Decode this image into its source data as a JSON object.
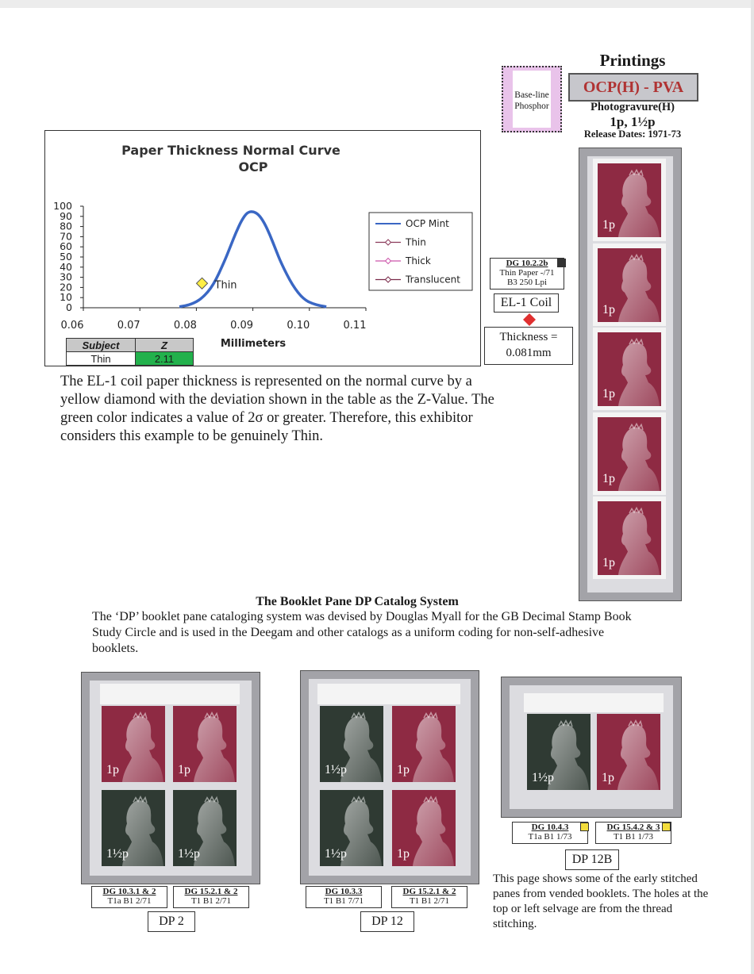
{
  "printings": {
    "title": "Printings",
    "printing": "OCP(H) - PVA",
    "process": "Photogravure(H)",
    "values": "1p, 1½p",
    "release": "Release Dates: 1971-73",
    "phosphor_line1": "Base-line",
    "phosphor_line2": "Phosphor",
    "phosphor_color": "#e9c3ea",
    "printing_text_color": "#b03333"
  },
  "chart_data": {
    "type": "line",
    "title": "Paper Thickness Normal Curve",
    "subtitle": "OCP",
    "xlabel": "Millimeters",
    "ylabel": "",
    "xlim": [
      0.06,
      0.11
    ],
    "ylim": [
      0,
      100
    ],
    "x_ticks": [
      "0.06",
      "0.07",
      "0.08",
      "0.09",
      "0.10",
      "0.11"
    ],
    "y_ticks": [
      "0",
      "10",
      "20",
      "30",
      "40",
      "50",
      "60",
      "70",
      "80",
      "90",
      "100"
    ],
    "grid": false,
    "legend_position": "right",
    "series": [
      {
        "name": "OCP Mint",
        "color": "#3a67c4",
        "x": [
          0.077,
          0.079,
          0.081,
          0.083,
          0.085,
          0.086,
          0.087,
          0.088,
          0.089,
          0.09,
          0.091,
          0.092,
          0.093,
          0.094,
          0.095,
          0.097,
          0.099,
          0.101,
          0.103
        ],
        "y": [
          1,
          3,
          9,
          22,
          46,
          60,
          74,
          86,
          94,
          95,
          92,
          84,
          72,
          58,
          44,
          22,
          8,
          3,
          1
        ]
      },
      {
        "name": "Thin",
        "color": "#8b3a5a",
        "x": [
          0.081
        ],
        "y": [
          24
        ],
        "marker": "diamond",
        "marker_color": "#ffee44",
        "point_label": "Thin"
      },
      {
        "name": "Thick",
        "color": "#cc55aa"
      },
      {
        "name": "Translucent",
        "color": "#7a2a4a"
      }
    ]
  },
  "z_table": {
    "headers": [
      "Subject",
      "Z"
    ],
    "rows": [
      [
        "Thin",
        "2.11"
      ]
    ],
    "highlight_color": "#22b14c"
  },
  "el1": {
    "code": "DG 10.2.2b",
    "line2": "Thin Paper -/71",
    "line3": "B3 250 Lpi",
    "coil": "EL-1 Coil",
    "thickness_line1": "Thickness =",
    "thickness_line2": "0.081mm",
    "marker_color": "#e03030"
  },
  "para1": "The EL-1 coil paper thickness is represented on the normal curve by a yellow diamond with the deviation shown in the table as the Z-Value. The green color indicates a value of 2σ or greater. Therefore, this exhibitor considers this example to be genuinely Thin.",
  "booklet": {
    "title": "The Booklet Pane DP Catalog System",
    "text": "The ‘DP’ booklet pane cataloging system was devised by Douglas Myall for the GB Decimal Stamp Book Study Circle and is used in the Deegam and other catalogs as a uniform coding for non-self-adhesive booklets."
  },
  "stamp_values": {
    "one": "1p",
    "onehalf": "1½p"
  },
  "stamp_colors": {
    "magenta": "#8e2a43",
    "green": "#2f3a33"
  },
  "panes": {
    "dp2": {
      "name": "DP 2",
      "left": {
        "code": "DG 10.3.1 & 2",
        "sub": "T1a B1 2/71"
      },
      "right": {
        "code": "DG 15.2.1 & 2",
        "sub": "T1 B1 2/71"
      }
    },
    "dp12": {
      "name": "DP 12",
      "left": {
        "code": "DG 10.3.3",
        "sub": "T1 B1 7/71"
      },
      "right": {
        "code": "DG 15.2.1 & 2",
        "sub": "T1 B1 2/71"
      }
    },
    "dp12b": {
      "name": "DP 12B",
      "left": {
        "code": "DG 10.4.3",
        "sub": "T1a B1 1/73"
      },
      "right": {
        "code": "DG 15.4.2 & 3",
        "sub": "T1 B1 1/73"
      },
      "square_color": "#f2dc3c"
    }
  },
  "side_note": "This page shows some of the early stitched panes from vended booklets. The holes at the top or left selvage are from the thread stitching."
}
